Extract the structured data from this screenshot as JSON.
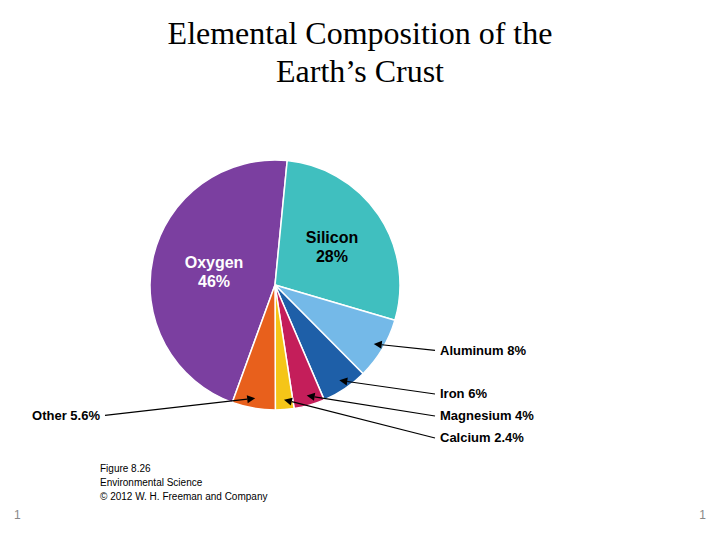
{
  "chart_data": {
    "type": "pie",
    "title": "Elemental Composition of the\nEarth’s Crust",
    "categories": [
      "Oxygen\n46%",
      "Silicon\n28%",
      "Aluminum 8%",
      "Iron 6%",
      "Magnesium 4%",
      "Calcium 2.4%",
      "Other 5.6%"
    ],
    "values": [
      46,
      28,
      8,
      6,
      4,
      2.4,
      5.6
    ],
    "colors": [
      "#7B3FA0",
      "#40BFBF",
      "#74B9E8",
      "#1E5FA8",
      "#C41E5A",
      "#F5C518",
      "#E8601C"
    ],
    "data_labels": true,
    "annotations": [
      "Figure 8.26\nEnvironmental Science\n© 2012 W. H. Freeman and Company",
      "1",
      "1"
    ]
  }
}
